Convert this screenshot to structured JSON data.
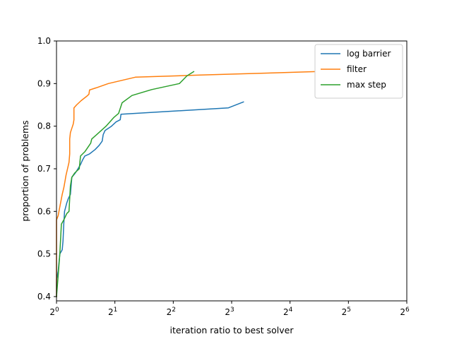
{
  "chart_data": {
    "type": "line",
    "title": "",
    "xlabel": "iteration ratio to best solver",
    "ylabel": "proportion of problems",
    "x_scale": "log2",
    "xlim": [
      1,
      64
    ],
    "ylim": [
      0.39,
      1.0
    ],
    "x_ticks": [
      {
        "value": 1,
        "base": "2",
        "exp": "0"
      },
      {
        "value": 2,
        "base": "2",
        "exp": "1"
      },
      {
        "value": 4,
        "base": "2",
        "exp": "2"
      },
      {
        "value": 8,
        "base": "2",
        "exp": "3"
      },
      {
        "value": 16,
        "base": "2",
        "exp": "4"
      },
      {
        "value": 32,
        "base": "2",
        "exp": "5"
      },
      {
        "value": 64,
        "base": "2",
        "exp": "6"
      }
    ],
    "y_ticks": [
      {
        "value": 0.4,
        "label": "0.4"
      },
      {
        "value": 0.5,
        "label": "0.5"
      },
      {
        "value": 0.6,
        "label": "0.6"
      },
      {
        "value": 0.7,
        "label": "0.7"
      },
      {
        "value": 0.8,
        "label": "0.8"
      },
      {
        "value": 0.9,
        "label": "0.9"
      },
      {
        "value": 1.0,
        "label": "1.0"
      }
    ],
    "grid": false,
    "legend": "upper-right",
    "series": [
      {
        "name": "log barrier",
        "color": "#1f77b4",
        "points": [
          [
            1.0,
            0.4
          ],
          [
            1.0,
            0.44
          ],
          [
            1.02,
            0.46
          ],
          [
            1.04,
            0.5
          ],
          [
            1.07,
            0.51
          ],
          [
            1.08,
            0.53
          ],
          [
            1.09,
            0.57
          ],
          [
            1.1,
            0.6
          ],
          [
            1.13,
            0.62
          ],
          [
            1.15,
            0.63
          ],
          [
            1.18,
            0.64
          ],
          [
            1.2,
            0.68
          ],
          [
            1.25,
            0.69
          ],
          [
            1.29,
            0.7
          ],
          [
            1.33,
            0.71
          ],
          [
            1.36,
            0.72
          ],
          [
            1.4,
            0.73
          ],
          [
            1.48,
            0.735
          ],
          [
            1.58,
            0.745
          ],
          [
            1.66,
            0.755
          ],
          [
            1.72,
            0.765
          ],
          [
            1.74,
            0.78
          ],
          [
            1.78,
            0.79
          ],
          [
            1.92,
            0.8
          ],
          [
            2.03,
            0.81
          ],
          [
            2.13,
            0.815
          ],
          [
            2.15,
            0.828
          ],
          [
            7.7,
            0.843
          ],
          [
            9.2,
            0.857
          ]
        ]
      },
      {
        "name": "filter",
        "color": "#ff7f0e",
        "points": [
          [
            1.0,
            0.4
          ],
          [
            1.0,
            0.58
          ],
          [
            1.02,
            0.59
          ],
          [
            1.03,
            0.6
          ],
          [
            1.05,
            0.62
          ],
          [
            1.07,
            0.64
          ],
          [
            1.09,
            0.655
          ],
          [
            1.1,
            0.665
          ],
          [
            1.12,
            0.685
          ],
          [
            1.14,
            0.7
          ],
          [
            1.16,
            0.715
          ],
          [
            1.17,
            0.735
          ],
          [
            1.17,
            0.77
          ],
          [
            1.18,
            0.785
          ],
          [
            1.2,
            0.795
          ],
          [
            1.22,
            0.805
          ],
          [
            1.23,
            0.815
          ],
          [
            1.23,
            0.843
          ],
          [
            1.27,
            0.85
          ],
          [
            1.34,
            0.86
          ],
          [
            1.43,
            0.87
          ],
          [
            1.47,
            0.875
          ],
          [
            1.48,
            0.885
          ],
          [
            1.6,
            0.89
          ],
          [
            1.85,
            0.9
          ],
          [
            2.55,
            0.915
          ],
          [
            5.5,
            0.92
          ],
          [
            13.0,
            0.925
          ],
          [
            21.5,
            0.928
          ]
        ]
      },
      {
        "name": "max step",
        "color": "#2ca02c",
        "points": [
          [
            1.0,
            0.4
          ],
          [
            1.02,
            0.45
          ],
          [
            1.04,
            0.5
          ],
          [
            1.06,
            0.57
          ],
          [
            1.09,
            0.58
          ],
          [
            1.13,
            0.595
          ],
          [
            1.16,
            0.6
          ],
          [
            1.18,
            0.66
          ],
          [
            1.2,
            0.68
          ],
          [
            1.24,
            0.69
          ],
          [
            1.31,
            0.7
          ],
          [
            1.33,
            0.73
          ],
          [
            1.4,
            0.74
          ],
          [
            1.5,
            0.76
          ],
          [
            1.52,
            0.77
          ],
          [
            1.61,
            0.78
          ],
          [
            1.8,
            0.8
          ],
          [
            1.97,
            0.82
          ],
          [
            2.09,
            0.83
          ],
          [
            2.18,
            0.855
          ],
          [
            2.45,
            0.872
          ],
          [
            3.1,
            0.886
          ],
          [
            4.3,
            0.9
          ],
          [
            4.7,
            0.918
          ],
          [
            5.1,
            0.928
          ]
        ]
      }
    ]
  }
}
